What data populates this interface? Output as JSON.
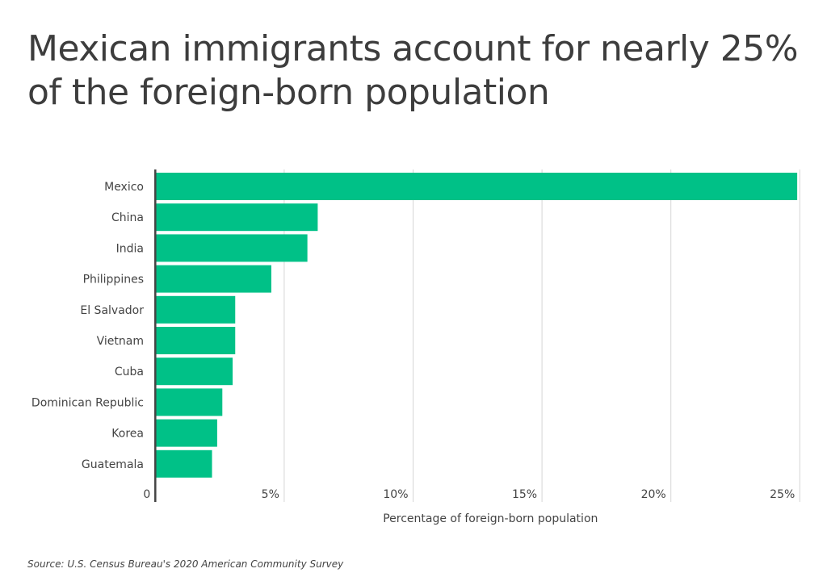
{
  "chart_data": {
    "type": "bar",
    "orientation": "horizontal",
    "title": "Mexican immigrants account for nearly 25% of the foreign-born population",
    "categories": [
      "Mexico",
      "China",
      "India",
      "Philippines",
      "El Salvador",
      "Vietnam",
      "Cuba",
      "Dominican Republic",
      "Korea",
      "Guatemala"
    ],
    "values": [
      24.9,
      6.3,
      5.9,
      4.5,
      3.1,
      3.1,
      3.0,
      2.6,
      2.4,
      2.2
    ],
    "xlabel": "Percentage of foreign-born population",
    "ylabel": "",
    "xlim": [
      0,
      25
    ],
    "xticks": [
      0,
      5,
      10,
      15,
      20,
      25
    ],
    "xtick_labels": [
      "0",
      "5%",
      "10%",
      "15%",
      "20%",
      "25%"
    ],
    "grid": "vertical",
    "legend": "none",
    "bar_color": "#00c187",
    "source": "Source:  U.S. Census Bureau's 2020 American Community Survey"
  }
}
